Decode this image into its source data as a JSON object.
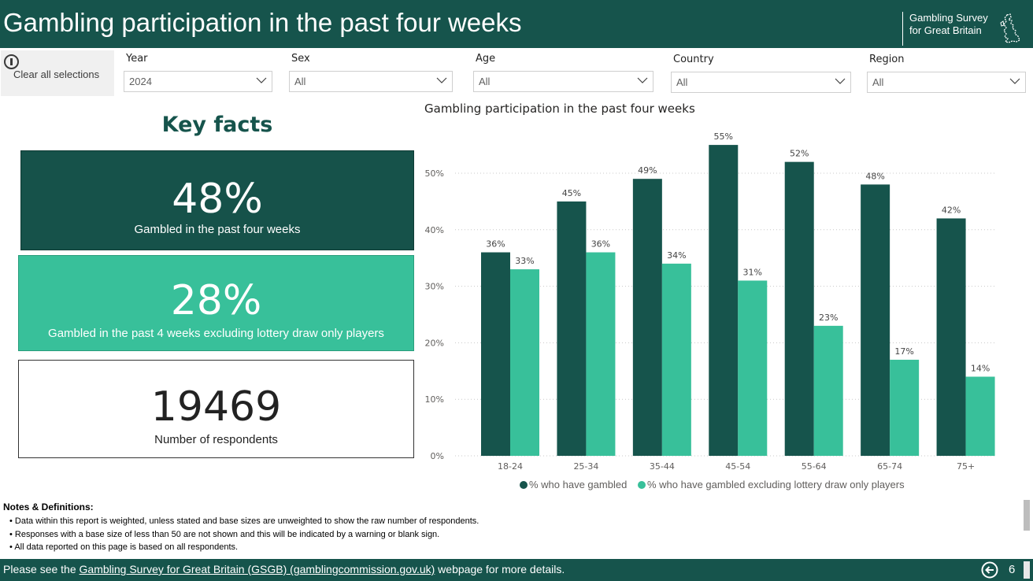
{
  "header": {
    "title": "Gambling participation in the past four weeks",
    "logo_line1": "Gambling Survey",
    "logo_line2": "for Great Britain"
  },
  "filters": {
    "clear_label": "Clear all selections",
    "items": [
      {
        "label": "Year",
        "value": "2024"
      },
      {
        "label": "Sex",
        "value": "All"
      },
      {
        "label": "Age",
        "value": "All"
      },
      {
        "label": "Country",
        "value": "All"
      },
      {
        "label": "Region",
        "value": "All"
      }
    ]
  },
  "key_facts": {
    "title": "Key facts",
    "cards": [
      {
        "value": "48%",
        "caption": "Gambled in the past four weeks"
      },
      {
        "value": "28%",
        "caption": "Gambled in the past 4 weeks excluding lottery draw only players"
      },
      {
        "value": "19469",
        "caption": "Number of respondents"
      }
    ]
  },
  "chart_data": {
    "type": "bar",
    "title": "Gambling participation in the past four weeks",
    "categories": [
      "18-24",
      "25-34",
      "35-44",
      "45-54",
      "55-64",
      "65-74",
      "75+"
    ],
    "series": [
      {
        "name": "% who have gambled",
        "values": [
          36,
          45,
          49,
          55,
          52,
          48,
          42
        ],
        "labels": [
          "36%",
          "45%",
          "49%",
          "55%",
          "52%",
          "48%",
          "42%"
        ],
        "color": "#16544c"
      },
      {
        "name": "% who have gambled excluding lottery draw only players",
        "values": [
          33,
          36,
          34,
          31,
          23,
          17,
          14
        ],
        "labels": [
          "33%",
          "36%",
          "34%",
          "31%",
          "23%",
          "17%",
          "14%"
        ],
        "color": "#38c09a"
      }
    ],
    "y_ticks": [
      "0%",
      "10%",
      "20%",
      "30%",
      "40%",
      "50%"
    ],
    "ylim": [
      0,
      55
    ],
    "grid": true,
    "legend": "bottom-center"
  },
  "notes": {
    "title": "Notes & Definitions:",
    "items": [
      "Data within this report is weighted, unless stated and base sizes are unweighted to show the raw number of respondents.",
      "Responses with a base size of less than 50 are not shown and this will be indicated by a warning or blank sign.",
      "All data reported on this page is based on all respondents."
    ]
  },
  "footer": {
    "prefix": "Please see the ",
    "link_text": "Gambling Survey for Great Britain (GSGB) (gamblingcommission.gov.uk)",
    "suffix": " webpage for more details.",
    "page_number": "6"
  },
  "colors": {
    "brand": "#16544c",
    "accent": "#38c09a"
  }
}
